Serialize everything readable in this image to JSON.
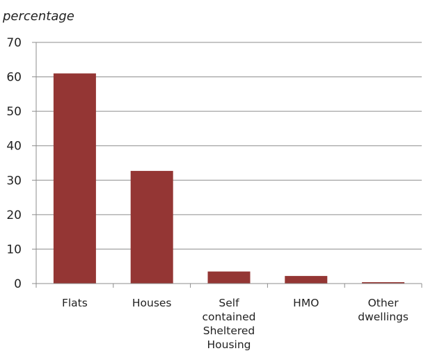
{
  "chart_data": {
    "type": "bar",
    "ylabel": "percentage",
    "xlabel": "",
    "ylim": [
      0,
      70
    ],
    "yticks": [
      0,
      10,
      20,
      30,
      40,
      50,
      60,
      70
    ],
    "grid": true,
    "categories": [
      [
        "Flats"
      ],
      [
        "Houses"
      ],
      [
        "Self",
        "contained",
        "Sheltered",
        "Housing"
      ],
      [
        "HMO"
      ],
      [
        "Other",
        "dwellings"
      ]
    ],
    "values": [
      61,
      32.7,
      3.5,
      2.2,
      0.4
    ],
    "bar_color": "#943634"
  }
}
